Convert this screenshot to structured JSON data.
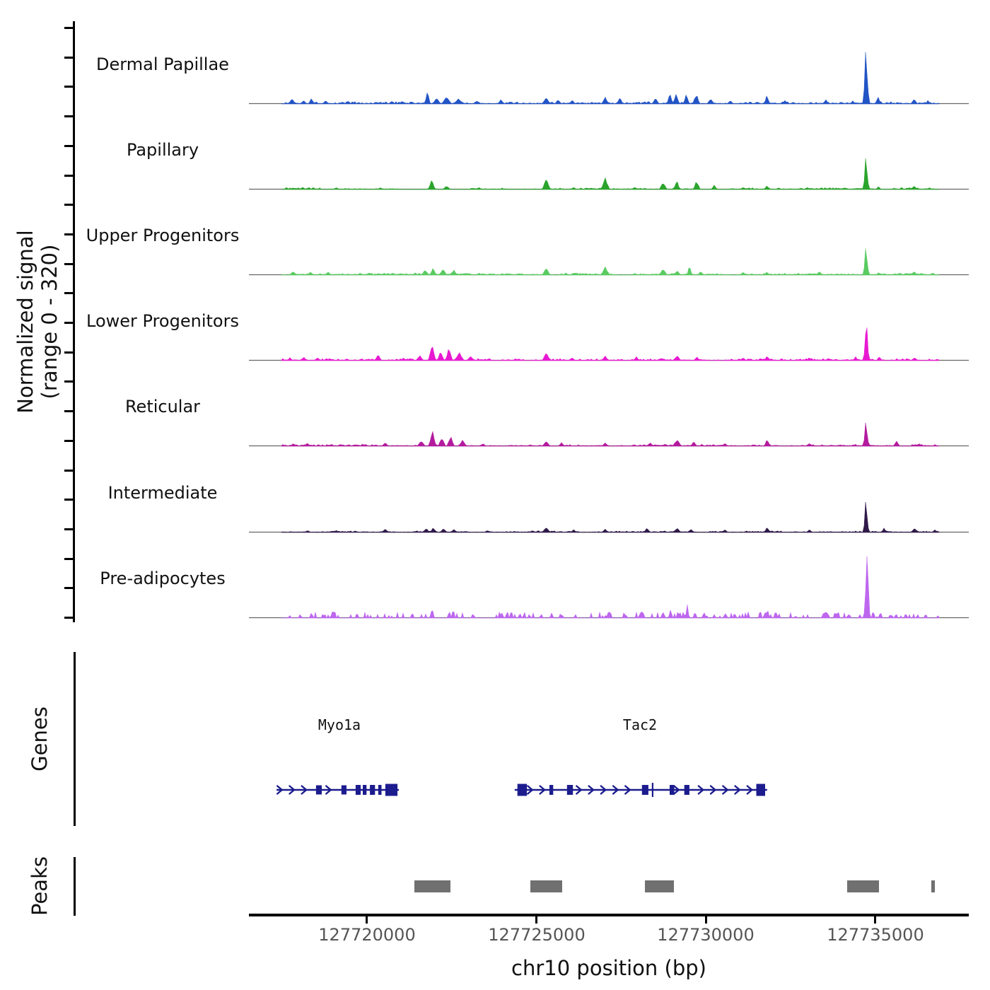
{
  "figure": {
    "y_axis_label_line1": "Normalized signal",
    "y_axis_label_line2": "(range 0 - 320)",
    "genes_section_label": "Genes",
    "peaks_section_label": "Peaks",
    "x_axis_title": "chr10 position (bp)"
  },
  "colors": {
    "dermal_papillae": "#2254C5",
    "papillary": "#2BA42C",
    "upper_progenitors": "#59CB61",
    "lower_progenitors": "#E81AD1",
    "reticular": "#B41A9E",
    "intermediate": "#301A4A",
    "pre_adipocytes": "#BD67EF",
    "gene_model": "#1C1C8E",
    "peak_interval": "#707070",
    "track_baseline": "#666666",
    "axis": "#000000",
    "tick_label": "#555555"
  },
  "chart_data": {
    "type": "area",
    "subtype": "genome-browser-signal-tracks",
    "title": "",
    "xlabel": "chr10 position (bp)",
    "ylabel": "Normalized signal (range 0 - 320)",
    "ylim": [
      0,
      320
    ],
    "grid": false,
    "legend": "none",
    "x_axis": {
      "chrom": "chr10",
      "xmin": 127716515,
      "xmax": 127737761,
      "ticks": [
        127720000,
        127725000,
        127730000,
        127735000
      ],
      "tick_labels": [
        "127720000",
        "127725000",
        "127730000",
        "127735000"
      ]
    },
    "tracks": [
      {
        "label": "Dermal Papillae",
        "color": "#2254C5",
        "noise_amp": 2.3,
        "noise_style": "continuous",
        "peaks": [
          [
            127717790,
            21,
            260
          ],
          [
            127718120,
            15,
            220
          ],
          [
            127718360,
            24,
            200
          ],
          [
            127718780,
            15,
            220
          ],
          [
            127719430,
            12,
            260
          ],
          [
            127720300,
            8,
            300
          ],
          [
            127720730,
            12,
            220
          ],
          [
            127721780,
            52,
            200
          ],
          [
            127722050,
            27,
            280
          ],
          [
            127722350,
            30,
            340
          ],
          [
            127722700,
            24,
            300
          ],
          [
            127723250,
            15,
            260
          ],
          [
            127723950,
            18,
            240
          ],
          [
            127725290,
            27,
            260
          ],
          [
            127725640,
            18,
            240
          ],
          [
            127726060,
            15,
            240
          ],
          [
            127727030,
            30,
            260
          ],
          [
            127727460,
            24,
            260
          ],
          [
            127728520,
            24,
            240
          ],
          [
            127728940,
            40,
            220
          ],
          [
            127729130,
            49,
            200
          ],
          [
            127729420,
            37,
            220
          ],
          [
            127729720,
            43,
            240
          ],
          [
            127730140,
            24,
            240
          ],
          [
            127730720,
            15,
            220
          ],
          [
            127731800,
            34,
            200
          ],
          [
            127732340,
            15,
            220
          ],
          [
            127733540,
            18,
            240
          ],
          [
            127734340,
            12,
            200
          ],
          [
            127734730,
            240,
            190
          ],
          [
            127735080,
            37,
            170
          ],
          [
            127736150,
            24,
            240
          ],
          [
            127736560,
            15,
            200
          ]
        ]
      },
      {
        "label": "Papillary",
        "color": "#2BA42C",
        "noise_amp": 1.7,
        "noise_style": "continuous",
        "peaks": [
          [
            127718100,
            9,
            260
          ],
          [
            127719100,
            8,
            260
          ],
          [
            127720400,
            8,
            260
          ],
          [
            127721910,
            40,
            240
          ],
          [
            127722350,
            15,
            280
          ],
          [
            127723300,
            9,
            240
          ],
          [
            127725290,
            46,
            260
          ],
          [
            127726100,
            9,
            240
          ],
          [
            127727030,
            52,
            300
          ],
          [
            127727900,
            12,
            240
          ],
          [
            127728740,
            30,
            260
          ],
          [
            127729140,
            40,
            220
          ],
          [
            127729730,
            37,
            240
          ],
          [
            127730250,
            18,
            240
          ],
          [
            127731100,
            9,
            240
          ],
          [
            127731800,
            15,
            220
          ],
          [
            127733000,
            9,
            240
          ],
          [
            127734730,
            146,
            180
          ],
          [
            127735100,
            15,
            180
          ],
          [
            127736150,
            18,
            240
          ],
          [
            127736600,
            9,
            200
          ]
        ]
      },
      {
        "label": "Upper Progenitors",
        "color": "#59CB61",
        "noise_amp": 2.0,
        "noise_style": "continuous",
        "peaks": [
          [
            127717820,
            15,
            260
          ],
          [
            127718330,
            12,
            240
          ],
          [
            127718850,
            12,
            240
          ],
          [
            127719800,
            9,
            240
          ],
          [
            127720500,
            9,
            240
          ],
          [
            127721720,
            21,
            280
          ],
          [
            127721950,
            27,
            240
          ],
          [
            127722250,
            24,
            280
          ],
          [
            127722560,
            21,
            280
          ],
          [
            127723300,
            9,
            240
          ],
          [
            127725290,
            30,
            260
          ],
          [
            127726100,
            9,
            240
          ],
          [
            127727030,
            37,
            300
          ],
          [
            127727900,
            9,
            240
          ],
          [
            127728740,
            27,
            260
          ],
          [
            127729150,
            21,
            240
          ],
          [
            127729520,
            40,
            170
          ],
          [
            127729850,
            18,
            220
          ],
          [
            127731100,
            12,
            240
          ],
          [
            127731800,
            12,
            220
          ],
          [
            127733350,
            15,
            220
          ],
          [
            127734730,
            125,
            180
          ],
          [
            127735100,
            12,
            180
          ],
          [
            127736150,
            18,
            240
          ],
          [
            127736700,
            9,
            200
          ]
        ]
      },
      {
        "label": "Lower Progenitors",
        "color": "#E81AD1",
        "noise_amp": 2.2,
        "noise_style": "continuous",
        "peaks": [
          [
            127717730,
            12,
            240
          ],
          [
            127718130,
            15,
            240
          ],
          [
            127718540,
            12,
            240
          ],
          [
            127719400,
            9,
            240
          ],
          [
            127720330,
            24,
            260
          ],
          [
            127721080,
            12,
            240
          ],
          [
            127721560,
            21,
            280
          ],
          [
            127721920,
            67,
            260
          ],
          [
            127722170,
            43,
            240
          ],
          [
            127722420,
            52,
            240
          ],
          [
            127722720,
            34,
            320
          ],
          [
            127723060,
            18,
            300
          ],
          [
            127723600,
            9,
            240
          ],
          [
            127725290,
            34,
            260
          ],
          [
            127726060,
            12,
            240
          ],
          [
            127727030,
            21,
            260
          ],
          [
            127727950,
            15,
            240
          ],
          [
            127729150,
            24,
            260
          ],
          [
            127729740,
            15,
            240
          ],
          [
            127731100,
            12,
            240
          ],
          [
            127731810,
            18,
            240
          ],
          [
            127733050,
            12,
            240
          ],
          [
            127734420,
            15,
            200
          ],
          [
            127734740,
            158,
            180
          ],
          [
            127735120,
            18,
            180
          ],
          [
            127736160,
            15,
            220
          ],
          [
            127736950,
            12,
            180
          ]
        ]
      },
      {
        "label": "Reticular",
        "color": "#B41A9E",
        "noise_amp": 1.8,
        "noise_style": "continuous",
        "peaks": [
          [
            127717830,
            12,
            240
          ],
          [
            127718240,
            12,
            240
          ],
          [
            127719200,
            8,
            240
          ],
          [
            127720540,
            15,
            240
          ],
          [
            127721600,
            24,
            280
          ],
          [
            127721930,
            61,
            260
          ],
          [
            127722210,
            40,
            240
          ],
          [
            127722470,
            46,
            240
          ],
          [
            127722820,
            24,
            300
          ],
          [
            127723420,
            12,
            240
          ],
          [
            127725290,
            21,
            260
          ],
          [
            127725740,
            15,
            240
          ],
          [
            127727030,
            15,
            260
          ],
          [
            127728350,
            15,
            240
          ],
          [
            127729150,
            30,
            300
          ],
          [
            127729640,
            18,
            240
          ],
          [
            127730560,
            12,
            240
          ],
          [
            127731810,
            27,
            220
          ],
          [
            127733060,
            12,
            240
          ],
          [
            127734730,
            110,
            180
          ],
          [
            127735630,
            24,
            220
          ],
          [
            127736300,
            12,
            220
          ]
        ]
      },
      {
        "label": "Intermediate",
        "color": "#301A4A",
        "noise_amp": 1.5,
        "noise_style": "continuous",
        "peaks": [
          [
            127718250,
            9,
            240
          ],
          [
            127719100,
            9,
            240
          ],
          [
            127720540,
            15,
            240
          ],
          [
            127721740,
            18,
            260
          ],
          [
            127721960,
            21,
            240
          ],
          [
            127722260,
            18,
            240
          ],
          [
            127722570,
            15,
            240
          ],
          [
            127723560,
            9,
            240
          ],
          [
            127725290,
            21,
            280
          ],
          [
            127726100,
            12,
            240
          ],
          [
            127727030,
            15,
            260
          ],
          [
            127728260,
            18,
            240
          ],
          [
            127729150,
            21,
            260
          ],
          [
            127729560,
            15,
            240
          ],
          [
            127730560,
            12,
            240
          ],
          [
            127731810,
            21,
            220
          ],
          [
            127733060,
            12,
            240
          ],
          [
            127734730,
            146,
            170
          ],
          [
            127735260,
            18,
            200
          ],
          [
            127736160,
            21,
            220
          ],
          [
            127736760,
            12,
            200
          ]
        ]
      },
      {
        "label": "Pre-adipocytes",
        "color": "#BD67EF",
        "noise_amp": 2.0,
        "noise_style": "sparse",
        "peaks": [
          [
            127717720,
            12,
            140
          ],
          [
            127718030,
            18,
            140
          ],
          [
            127718340,
            12,
            140
          ],
          [
            127718950,
            12,
            140
          ],
          [
            127721920,
            43,
            160
          ],
          [
            127722430,
            30,
            150
          ],
          [
            127723150,
            12,
            140
          ],
          [
            127725140,
            18,
            150
          ],
          [
            127725450,
            24,
            150
          ],
          [
            127725760,
            18,
            150
          ],
          [
            127726150,
            15,
            140
          ],
          [
            127727050,
            15,
            150
          ],
          [
            127727640,
            18,
            150
          ],
          [
            127728150,
            21,
            150
          ],
          [
            127728740,
            30,
            160
          ],
          [
            127728960,
            37,
            150
          ],
          [
            127729230,
            27,
            150
          ],
          [
            127729450,
            55,
            140
          ],
          [
            127729680,
            30,
            150
          ],
          [
            127729950,
            27,
            160
          ],
          [
            127730250,
            15,
            150
          ],
          [
            127730850,
            21,
            150
          ],
          [
            127731250,
            18,
            150
          ],
          [
            127731820,
            37,
            150
          ],
          [
            127732060,
            30,
            150
          ],
          [
            127732650,
            12,
            140
          ],
          [
            127733450,
            12,
            140
          ],
          [
            127734550,
            15,
            140
          ],
          [
            127734760,
            320,
            170
          ],
          [
            127735150,
            24,
            150
          ],
          [
            127735450,
            18,
            150
          ],
          [
            127736250,
            15,
            140
          ],
          [
            127736850,
            12,
            140
          ]
        ]
      }
    ],
    "genes": [
      {
        "name": "Myo1a",
        "start_bp": 127717330,
        "end_bp": 127720940,
        "strand": "+",
        "label_bp": 127719190,
        "exons": [
          [
            127718580,
            170,
            13
          ],
          [
            127719320,
            150,
            13
          ],
          [
            127719740,
            150,
            14
          ],
          [
            127719930,
            110,
            14
          ],
          [
            127720160,
            150,
            14
          ],
          [
            127720380,
            95,
            14
          ],
          [
            127720720,
            360,
            17
          ]
        ]
      },
      {
        "name": "Tac2",
        "start_bp": 127724360,
        "end_bp": 127731810,
        "strand": "+",
        "label_bp": 127728060,
        "exons": [
          [
            127724580,
            280,
            17
          ],
          [
            127725440,
            110,
            14
          ],
          [
            127725990,
            175,
            14
          ],
          [
            127728210,
            190,
            14
          ],
          [
            127728430,
            45,
            20
          ],
          [
            127729000,
            135,
            14
          ],
          [
            127729440,
            150,
            14
          ],
          [
            127731620,
            260,
            17
          ]
        ]
      }
    ],
    "peaks": {
      "color": "#707070",
      "intervals_bp": [
        [
          127721400,
          127722460
        ],
        [
          127724820,
          127725760
        ],
        [
          127728200,
          127729060
        ],
        [
          127734170,
          127735110
        ],
        [
          127736650,
          127736760
        ]
      ]
    }
  }
}
